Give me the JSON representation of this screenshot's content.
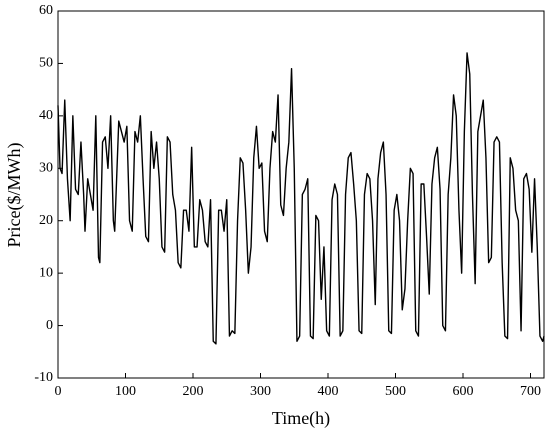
{
  "chart_data": {
    "type": "line",
    "x_label": "Time(h)",
    "y_label": "Price($/MWh)",
    "xlim": [
      0,
      720
    ],
    "ylim": [
      -10,
      60
    ],
    "xticks": [
      0,
      100,
      200,
      300,
      400,
      500,
      600,
      700
    ],
    "yticks": [
      -10,
      0,
      10,
      20,
      30,
      40,
      50,
      60
    ],
    "x": [
      0,
      3,
      6,
      10,
      14,
      18,
      22,
      26,
      30,
      34,
      38,
      40,
      44,
      48,
      52,
      56,
      60,
      62,
      66,
      70,
      74,
      78,
      82,
      84,
      90,
      94,
      98,
      102,
      106,
      110,
      114,
      118,
      122,
      126,
      130,
      134,
      138,
      142,
      146,
      150,
      154,
      158,
      162,
      166,
      170,
      174,
      178,
      182,
      186,
      190,
      194,
      198,
      202,
      206,
      210,
      214,
      218,
      222,
      226,
      230,
      234,
      238,
      242,
      246,
      250,
      254,
      258,
      262,
      266,
      270,
      274,
      278,
      282,
      286,
      290,
      294,
      298,
      302,
      306,
      310,
      314,
      318,
      322,
      326,
      330,
      334,
      338,
      342,
      346,
      350,
      354,
      358,
      362,
      366,
      370,
      374,
      378,
      382,
      386,
      390,
      394,
      398,
      402,
      406,
      410,
      414,
      418,
      422,
      426,
      430,
      434,
      438,
      442,
      446,
      450,
      454,
      458,
      462,
      466,
      470,
      474,
      478,
      482,
      486,
      490,
      494,
      498,
      502,
      506,
      510,
      514,
      518,
      522,
      526,
      530,
      534,
      538,
      542,
      546,
      550,
      554,
      558,
      562,
      566,
      570,
      574,
      578,
      582,
      586,
      590,
      594,
      598,
      602,
      606,
      610,
      614,
      618,
      622,
      626,
      630,
      634,
      638,
      642,
      646,
      650,
      654,
      658,
      662,
      666,
      670,
      674,
      678,
      682,
      686,
      690,
      694,
      698,
      702,
      706,
      710,
      714,
      718,
      720
    ],
    "series": [
      {
        "color": "#000000",
        "values": [
          42,
          30,
          29,
          43,
          28,
          20,
          40,
          26,
          25,
          35,
          25,
          18,
          28,
          25,
          22,
          40,
          13,
          12,
          35,
          36,
          30,
          40,
          20,
          18,
          39,
          37,
          35,
          38,
          20,
          18,
          37,
          35,
          40,
          28,
          17,
          16,
          37,
          30,
          35,
          28,
          15,
          14,
          36,
          35,
          25,
          22,
          12,
          11,
          22,
          22,
          18,
          34,
          15,
          15,
          24,
          22,
          16,
          15,
          24,
          -3,
          -3.5,
          22,
          22,
          18,
          24,
          -2,
          -1,
          -1.5,
          20,
          32,
          31,
          22,
          10,
          15,
          32,
          38,
          30,
          31,
          18,
          16,
          30,
          37,
          35,
          44,
          23,
          21,
          30,
          35,
          49,
          30,
          -3,
          -2,
          25,
          26,
          28,
          -2,
          -2.5,
          21,
          20,
          5,
          15,
          -1,
          -2,
          24,
          27,
          25,
          -2,
          -1,
          25,
          32,
          33,
          27,
          20,
          -1,
          -1.5,
          25,
          29,
          28,
          20,
          4,
          28,
          33,
          35,
          25,
          -1,
          -1.5,
          22,
          25,
          20,
          3,
          7,
          20,
          30,
          29,
          -1,
          -2,
          27,
          27,
          17,
          6,
          27,
          32,
          34,
          26,
          0,
          -1,
          25,
          32,
          44,
          40,
          22,
          10,
          37,
          52,
          48,
          25,
          8,
          37,
          40,
          43,
          32,
          12,
          13,
          35,
          36,
          35,
          12,
          -2,
          -2.5,
          32,
          30,
          22,
          20,
          -1,
          28,
          29,
          26,
          14,
          28,
          15,
          -2,
          -3,
          -2
        ]
      }
    ]
  }
}
